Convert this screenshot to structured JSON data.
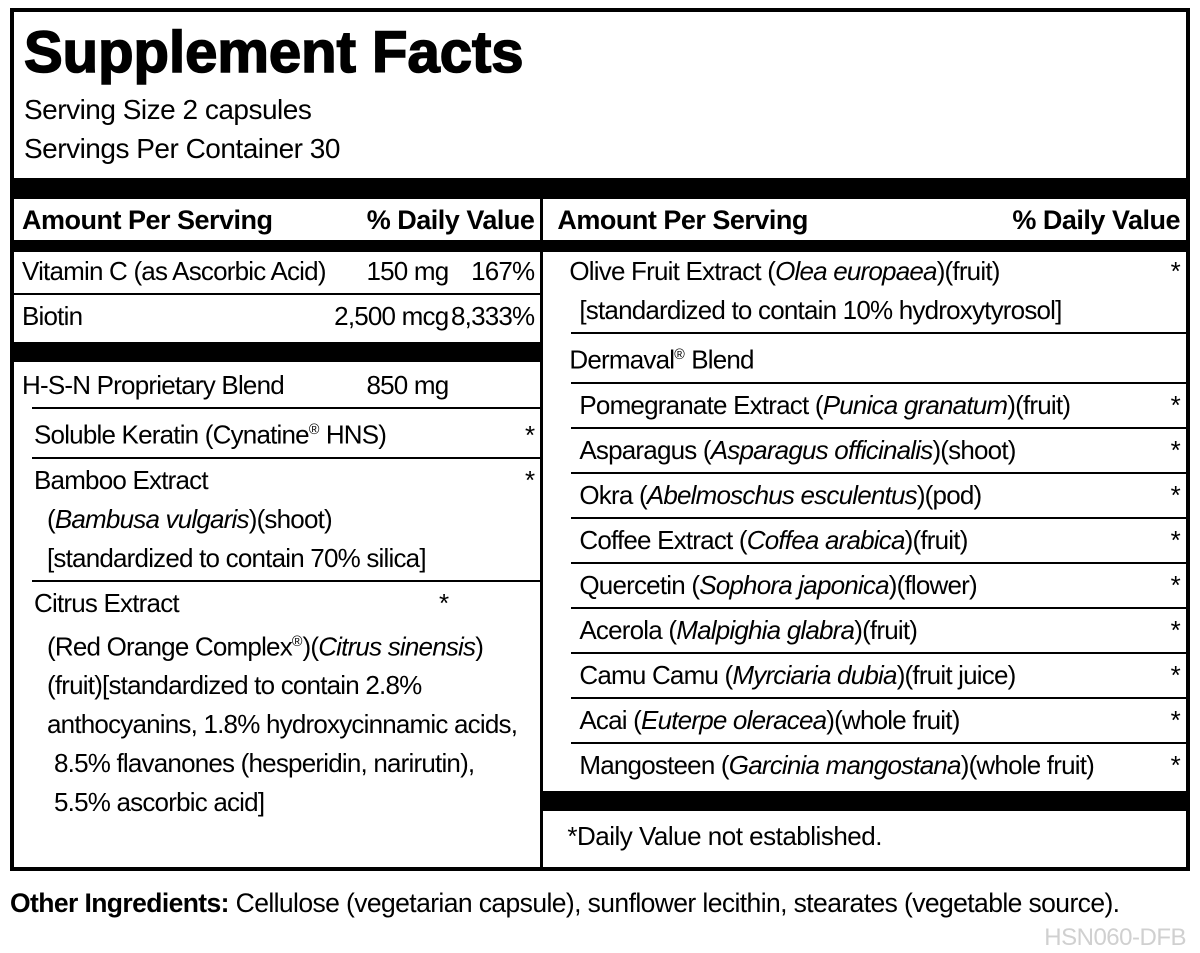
{
  "title": "Supplement Facts",
  "serving": {
    "size": "Serving Size 2 capsules",
    "per_container": "Servings Per Container 30"
  },
  "columns": {
    "header": {
      "amount": "Amount Per Serving",
      "daily_value": "% Daily Value"
    },
    "left": {
      "blocks": [
        {
          "sep": "thin",
          "lines": [
            {
              "indent": 0,
              "segs": [
                {
                  "t": "Vitamin C (as Ascorbic Acid)"
                }
              ],
              "amount": "150 mg",
              "pct": "167%"
            }
          ]
        },
        {
          "sep": "bar",
          "lines": [
            {
              "indent": 0,
              "segs": [
                {
                  "t": "Biotin"
                }
              ],
              "amount": "2,500 mcg",
              "pct": "8,333%"
            }
          ]
        },
        {
          "sep": "thin-ind",
          "lines": [
            {
              "indent": 0,
              "segs": [
                {
                  "t": "H-S-N Proprietary Blend"
                }
              ],
              "amount": "850 mg",
              "pct": ""
            }
          ]
        },
        {
          "sep": "thin-ind",
          "lines": [
            {
              "indent": 1,
              "segs": [
                {
                  "t": "Soluble Keratin (Cynatine"
                },
                {
                  "t": "®",
                  "sup": true
                },
                {
                  "t": " HNS)"
                }
              ],
              "star": "right"
            }
          ]
        },
        {
          "sep": "thin-ind",
          "lines": [
            {
              "indent": 1,
              "segs": [
                {
                  "t": "Bamboo Extract"
                }
              ],
              "star": "right"
            },
            {
              "indent": 2,
              "segs": [
                {
                  "t": "("
                },
                {
                  "t": "Bambusa vulgaris",
                  "i": true
                },
                {
                  "t": ")(shoot)"
                }
              ]
            },
            {
              "indent": 2,
              "segs": [
                {
                  "t": "[standardized to contain 70% silica]"
                }
              ]
            }
          ]
        },
        {
          "sep": null,
          "lines": [
            {
              "indent": 1,
              "segs": [
                {
                  "t": "Citrus Extract"
                }
              ],
              "star": "mid"
            },
            {
              "indent": 2,
              "segs": [
                {
                  "t": "(Red Orange Complex"
                },
                {
                  "t": "®",
                  "sup": true
                },
                {
                  "t": ")("
                },
                {
                  "t": "Citrus sinensis",
                  "i": true
                },
                {
                  "t": ")"
                }
              ]
            },
            {
              "indent": 2,
              "segs": [
                {
                  "t": "(fruit)[standardized to contain 2.8%"
                }
              ]
            },
            {
              "indent": 2,
              "segs": [
                {
                  "t": "anthocyanins, 1.8% hydroxycinnamic acids,"
                }
              ]
            },
            {
              "indent": 3,
              "segs": [
                {
                  "t": "8.5% flavanones (hesperidin, narirutin),"
                }
              ]
            },
            {
              "indent": 3,
              "segs": [
                {
                  "t": "5.5% ascorbic acid]"
                }
              ]
            }
          ]
        }
      ]
    },
    "right": {
      "blocks": [
        {
          "sep": "thin-ind",
          "lines": [
            {
              "indent": 0,
              "segs": [
                {
                  "t": "Olive Fruit Extract ("
                },
                {
                  "t": "Olea europaea",
                  "i": true
                },
                {
                  "t": ")(fruit)"
                }
              ],
              "star": "right"
            },
            {
              "indent": 1,
              "segs": [
                {
                  "t": "[standardized to contain 10% hydroxytyrosol]"
                }
              ]
            }
          ]
        },
        {
          "sep": "thin-ind",
          "lines": [
            {
              "indent": 0,
              "segs": [
                {
                  "t": "Dermaval"
                },
                {
                  "t": "®",
                  "sup": true
                },
                {
                  "t": " Blend"
                }
              ]
            }
          ]
        },
        {
          "sep": "thin-ind",
          "lines": [
            {
              "indent": 1,
              "segs": [
                {
                  "t": "Pomegranate Extract ("
                },
                {
                  "t": "Punica granatum",
                  "i": true
                },
                {
                  "t": ")(fruit)"
                }
              ],
              "star": "right"
            }
          ]
        },
        {
          "sep": "thin-ind",
          "lines": [
            {
              "indent": 1,
              "segs": [
                {
                  "t": "Asparagus ("
                },
                {
                  "t": "Asparagus officinalis",
                  "i": true
                },
                {
                  "t": ")(shoot)"
                }
              ],
              "star": "right"
            }
          ]
        },
        {
          "sep": "thin-ind",
          "lines": [
            {
              "indent": 1,
              "segs": [
                {
                  "t": "Okra ("
                },
                {
                  "t": "Abelmoschus esculentus",
                  "i": true
                },
                {
                  "t": ")(pod)"
                }
              ],
              "star": "right"
            }
          ]
        },
        {
          "sep": "thin-ind",
          "lines": [
            {
              "indent": 1,
              "segs": [
                {
                  "t": "Coffee Extract ("
                },
                {
                  "t": "Coffea arabica",
                  "i": true
                },
                {
                  "t": ")(fruit)"
                }
              ],
              "star": "right"
            }
          ]
        },
        {
          "sep": "thin-ind",
          "lines": [
            {
              "indent": 1,
              "segs": [
                {
                  "t": "Quercetin ("
                },
                {
                  "t": "Sophora japonica",
                  "i": true
                },
                {
                  "t": ")(flower)"
                }
              ],
              "star": "right"
            }
          ]
        },
        {
          "sep": "thin-ind",
          "lines": [
            {
              "indent": 1,
              "segs": [
                {
                  "t": "Acerola ("
                },
                {
                  "t": "Malpighia glabra",
                  "i": true
                },
                {
                  "t": ")(fruit)"
                }
              ],
              "star": "right"
            }
          ]
        },
        {
          "sep": "thin-ind",
          "lines": [
            {
              "indent": 1,
              "segs": [
                {
                  "t": "Camu Camu ("
                },
                {
                  "t": "Myrciaria dubia",
                  "i": true
                },
                {
                  "t": ")(fruit juice)"
                }
              ],
              "star": "right"
            }
          ]
        },
        {
          "sep": "thin-ind",
          "lines": [
            {
              "indent": 1,
              "segs": [
                {
                  "t": "Acai ("
                },
                {
                  "t": "Euterpe oleracea",
                  "i": true
                },
                {
                  "t": ")(whole fruit)"
                }
              ],
              "star": "right"
            }
          ]
        },
        {
          "sep": "bar",
          "lines": [
            {
              "indent": 1,
              "segs": [
                {
                  "t": "Mangosteen ("
                },
                {
                  "t": "Garcinia mangostana",
                  "i": true
                },
                {
                  "t": ")(whole fruit)"
                }
              ],
              "star": "right"
            }
          ]
        }
      ],
      "footnote": "*Daily Value not established."
    }
  },
  "other_ingredients": {
    "label": "Other Ingredients:",
    "text": " Cellulose (vegetarian capsule), sunflower lecithin, stearates (vegetable source)."
  },
  "product_code": "HSN060-DFB",
  "colors": {
    "ink": "#000000",
    "paper": "#ffffff",
    "code_gray": "#d0d0d0"
  }
}
